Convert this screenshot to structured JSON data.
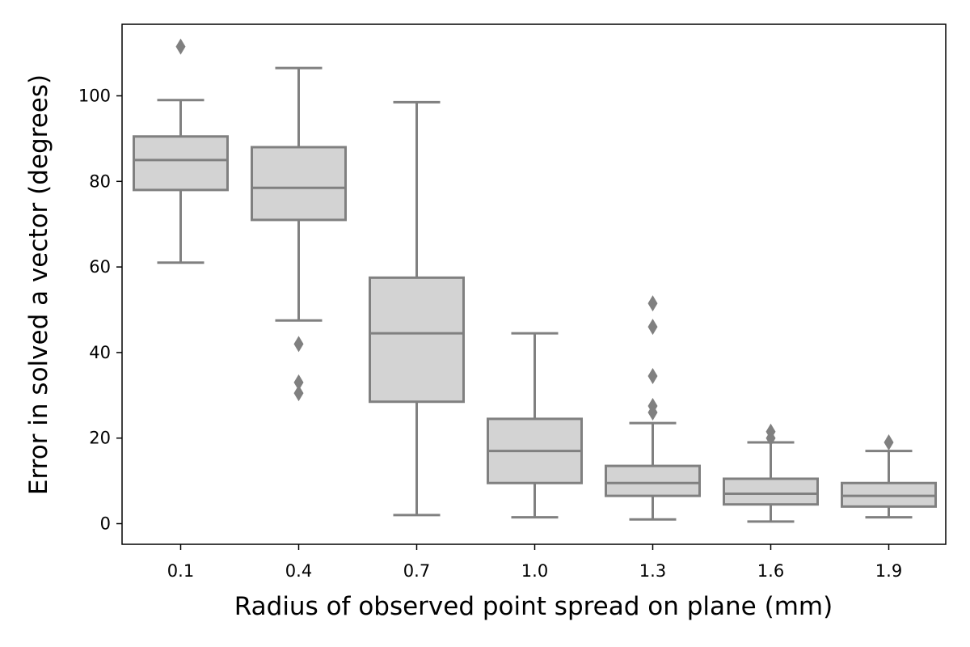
{
  "chart_data": {
    "type": "box",
    "xlabel": "Radius of observed point spread on plane (mm)",
    "ylabel": "Error in solved a vector (degrees)",
    "categories": [
      "0.1",
      "0.4",
      "0.7",
      "1.0",
      "1.3",
      "1.6",
      "1.9"
    ],
    "y_ticks": [
      "0",
      "20",
      "40",
      "60",
      "80",
      "100"
    ],
    "y_tick_values": [
      0,
      20,
      40,
      60,
      80,
      100
    ],
    "ylim": [
      -5,
      117
    ],
    "grid": false,
    "box_fill_color": "#d3d3d3",
    "line_color": "#808080",
    "boxes": [
      {
        "category": "0.1",
        "whisker_low": 61,
        "q1": 78,
        "median": 85,
        "q3": 90.5,
        "whisker_high": 99,
        "outliers": [
          111.5
        ]
      },
      {
        "category": "0.4",
        "whisker_low": 47.5,
        "q1": 71,
        "median": 78.5,
        "q3": 88,
        "whisker_high": 106.5,
        "outliers": [
          42,
          33,
          30.5
        ]
      },
      {
        "category": "0.7",
        "whisker_low": 2,
        "q1": 28.5,
        "median": 44.5,
        "q3": 57.5,
        "whisker_high": 98.5,
        "outliers": []
      },
      {
        "category": "1.0",
        "whisker_low": 1.5,
        "q1": 9.5,
        "median": 17,
        "q3": 24.5,
        "whisker_high": 44.5,
        "outliers": []
      },
      {
        "category": "1.3",
        "whisker_low": 1,
        "q1": 6.5,
        "median": 9.5,
        "q3": 13.5,
        "whisker_high": 23.5,
        "outliers": [
          51.5,
          46,
          34.5,
          27.5,
          26
        ]
      },
      {
        "category": "1.6",
        "whisker_low": 0.5,
        "q1": 4.5,
        "median": 7,
        "q3": 10.5,
        "whisker_high": 19,
        "outliers": [
          21.5,
          20
        ]
      },
      {
        "category": "1.9",
        "whisker_low": 1.5,
        "q1": 4,
        "median": 6.5,
        "q3": 9.5,
        "whisker_high": 17,
        "outliers": [
          19
        ]
      }
    ]
  }
}
